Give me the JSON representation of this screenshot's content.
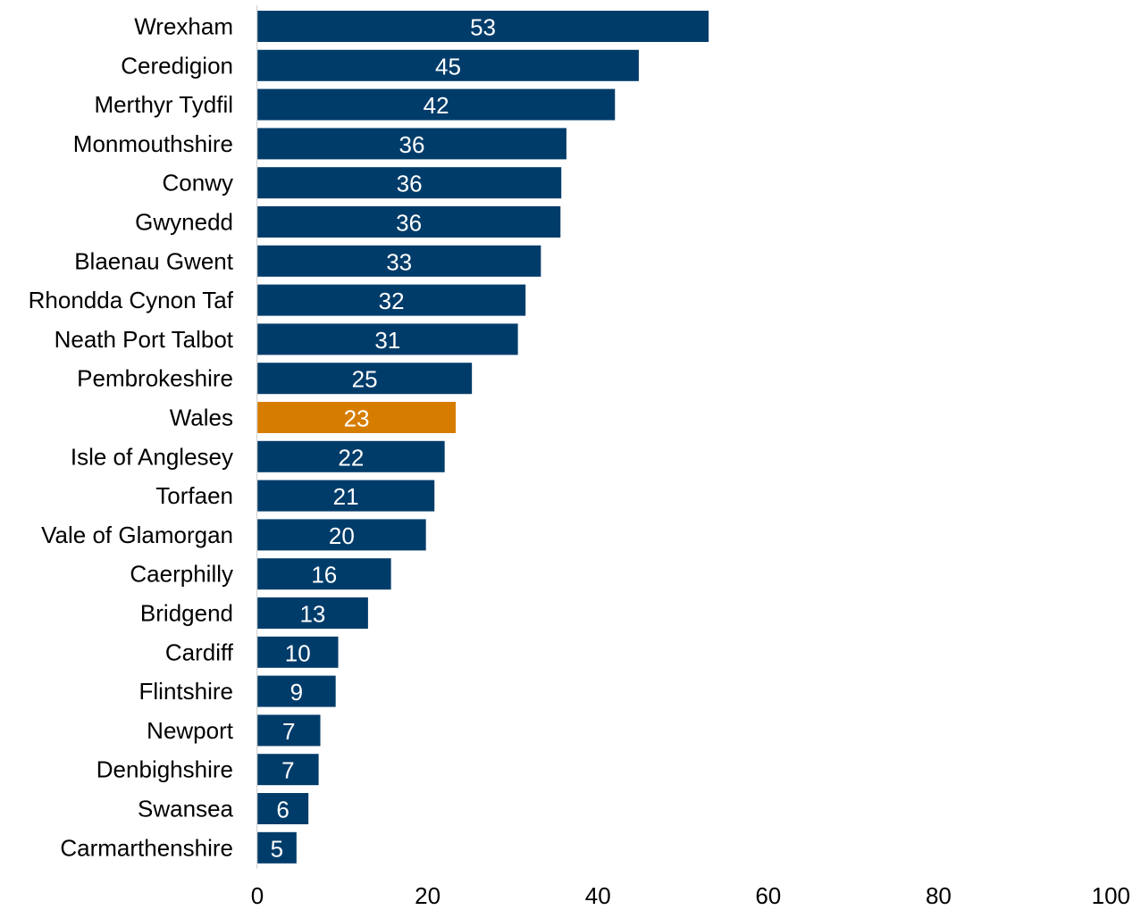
{
  "chart_data": {
    "type": "bar",
    "orientation": "horizontal",
    "categories": [
      "Wrexham",
      "Ceredigion",
      "Merthyr Tydfil",
      "Monmouthshire",
      "Conwy",
      "Gwynedd",
      "Blaenau Gwent",
      "Rhondda Cynon Taf",
      "Neath Port Talbot",
      "Pembrokeshire",
      "Wales",
      "Isle of Anglesey",
      "Torfaen",
      "Vale of Glamorgan",
      "Caerphilly",
      "Bridgend",
      "Cardiff",
      "Flintshire",
      "Newport",
      "Denbighshire",
      "Swansea",
      "Carmarthenshire"
    ],
    "values": [
      53,
      45,
      42,
      36,
      36,
      36,
      33,
      32,
      31,
      25,
      23,
      22,
      21,
      20,
      16,
      13,
      10,
      9,
      7,
      7,
      6,
      5
    ],
    "plotted_values": [
      53.0,
      44.8,
      42.0,
      36.3,
      35.7,
      35.6,
      33.3,
      31.5,
      30.6,
      25.2,
      23.3,
      22.0,
      20.8,
      19.8,
      15.7,
      13.0,
      9.5,
      9.2,
      7.4,
      7.2,
      6.0,
      4.6
    ],
    "data_labels": [
      "53",
      "45",
      "42",
      "36",
      "36",
      "36",
      "33",
      "32",
      "31",
      "25",
      "23",
      "22",
      "21",
      "20",
      "16",
      "13",
      "10",
      "9",
      "7",
      "7",
      "6",
      "5"
    ],
    "highlight_category": "Wales",
    "xlim": [
      0,
      100
    ],
    "xticks": [
      0,
      20,
      40,
      60,
      80,
      100
    ],
    "xtick_labels": [
      "0",
      "20",
      "40",
      "60",
      "80",
      "100"
    ],
    "grid": false,
    "legend": "none",
    "colors": {
      "bar": "#003c6a",
      "highlight": "#d67d00",
      "axis": "#d9d9d9",
      "label_text": "#ffffff"
    }
  }
}
